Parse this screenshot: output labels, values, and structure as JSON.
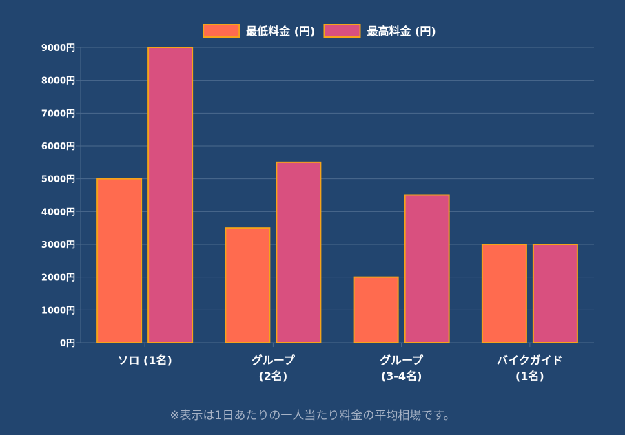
{
  "chart_data": {
    "type": "bar",
    "categories": [
      [
        "ソロ (1名)"
      ],
      [
        "グループ",
        "(2名)"
      ],
      [
        "グループ",
        "(3-4名)"
      ],
      [
        "バイクガイド",
        "(1名)"
      ]
    ],
    "series": [
      {
        "name": "最低料金 (円)",
        "values": [
          5000,
          3500,
          2000,
          3000
        ],
        "color": "#ff6b4f"
      },
      {
        "name": "最高料金 (円)",
        "values": [
          9000,
          5500,
          4500,
          3000
        ],
        "color": "#d9507f"
      }
    ],
    "bar_border_color": "#f5a31a",
    "ylim": [
      0,
      9000
    ],
    "y_ticks": [
      0,
      1000,
      2000,
      3000,
      4000,
      5000,
      6000,
      7000,
      8000,
      9000
    ],
    "y_tick_suffix": "円",
    "grid": true,
    "legend": "top-center",
    "title": "",
    "xlabel": "",
    "ylabel": ""
  },
  "footnote": "※表示は1日あたりの一人当たり料金の平均相場です。"
}
